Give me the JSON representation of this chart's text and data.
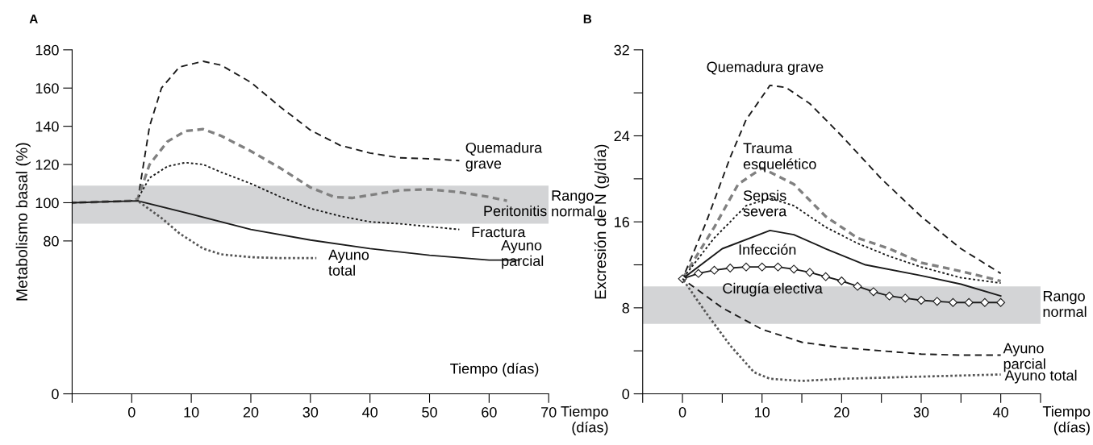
{
  "chart_data": [
    {
      "type": "line",
      "title": "A",
      "xlabel": "Tiempo\n(días)",
      "ylabel": "Metabolismo basal (%)",
      "xlim": [
        -10,
        70
      ],
      "xticks": [
        {
          "value": -10,
          "label": null
        },
        0,
        10,
        20,
        30,
        40,
        50,
        60,
        70
      ],
      "ylim": [
        0,
        180
      ],
      "yticks": [
        0,
        80,
        100,
        120,
        140,
        160,
        180
      ],
      "bands": [
        {
          "axis": "y",
          "from": 89,
          "to": 109,
          "label": "Rango\nnormal",
          "color": "#d3d4d6"
        }
      ],
      "series": [
        {
          "name": "Quemadura\ngrave",
          "color": "#1a1a1a",
          "line_style": "dashed",
          "x": [
            -10,
            0,
            1,
            3,
            5,
            8,
            12,
            15,
            20,
            25,
            30,
            35,
            40,
            45,
            50,
            55
          ],
          "values": [
            100,
            101,
            101,
            140,
            160,
            171,
            174,
            172,
            163,
            150,
            138,
            130,
            126,
            123.5,
            123,
            122
          ]
        },
        {
          "name": "Peritonitis",
          "color": "#808080",
          "line_style": "dashed",
          "x": [
            -10,
            0,
            1,
            3,
            6,
            9,
            12,
            15,
            20,
            25,
            30,
            34,
            37,
            40,
            45,
            50,
            55,
            60,
            63
          ],
          "values": [
            100,
            101,
            102,
            120,
            132,
            137.5,
            138.5,
            135,
            127,
            118,
            108,
            103,
            102.5,
            104,
            106.5,
            107,
            105.5,
            103,
            101
          ]
        },
        {
          "name": "Fractura",
          "color": "#1a1a1a",
          "line_style": "dotted",
          "x": [
            1,
            3,
            6,
            9,
            12,
            15,
            20,
            25,
            30,
            35,
            40,
            45,
            50,
            55
          ],
          "values": [
            102,
            113,
            119,
            121,
            120,
            116,
            110,
            103,
            97,
            93,
            90,
            89,
            87.5,
            86
          ]
        },
        {
          "name": "Ayuno\nparcial",
          "color": "#1a1a1a",
          "line_style": "solid",
          "x": [
            -10,
            1,
            10,
            20,
            30,
            40,
            50,
            60,
            65
          ],
          "values": [
            100,
            101,
            94,
            86,
            80.5,
            76,
            72.5,
            70,
            70
          ]
        },
        {
          "name": "Ayuno\ntotal",
          "color": "#555555",
          "line_style": "dotted",
          "x": [
            1,
            5,
            8,
            12,
            15,
            20,
            25,
            31
          ],
          "values": [
            101,
            92,
            84,
            76,
            73,
            71.5,
            71,
            71
          ]
        }
      ],
      "annotations": [
        "Tiempo (días)"
      ]
    },
    {
      "type": "line",
      "title": "B",
      "xlabel": "Tiempo\n(días)",
      "ylabel": "Excresión de N (g/día)",
      "xlim": [
        -5,
        45
      ],
      "xticks": [
        {
          "value": -5,
          "label": null
        },
        0,
        {
          "value": 5,
          "label": null
        },
        10,
        {
          "value": 15,
          "label": null
        },
        20,
        {
          "value": 25,
          "label": null
        },
        30,
        {
          "value": 35,
          "label": null
        },
        40,
        {
          "value": 45,
          "label": null
        }
      ],
      "ylim": [
        0,
        32
      ],
      "yticks": [
        0,
        {
          "value": 4,
          "label": null
        },
        8,
        {
          "value": 12,
          "label": null
        },
        16,
        {
          "value": 20,
          "label": null
        },
        24,
        {
          "value": 28,
          "label": null
        },
        32
      ],
      "bands": [
        {
          "axis": "y",
          "from": 6.5,
          "to": 10,
          "label": "Rango\nnormal",
          "color": "#d3d4d6"
        }
      ],
      "series": [
        {
          "name": "Quemadura grave",
          "color": "#1a1a1a",
          "line_style": "dashed",
          "x": [
            0,
            3,
            6,
            8,
            11,
            13,
            16,
            20,
            25,
            30,
            35,
            40
          ],
          "values": [
            10.7,
            16,
            22,
            25.5,
            28.7,
            28.5,
            27,
            24,
            20,
            16.5,
            13.5,
            11.2
          ]
        },
        {
          "name": "Trauma\nesquelético",
          "color": "#808080",
          "line_style": "dashed",
          "x": [
            0,
            4,
            7,
            10,
            14,
            18,
            22,
            26,
            30,
            35,
            40
          ],
          "values": [
            10.7,
            15.5,
            19.5,
            21,
            19.5,
            16.5,
            14.5,
            13.5,
            12.2,
            11.4,
            10.5
          ]
        },
        {
          "name": "Sepsis\nsevera",
          "color": "#1a1a1a",
          "line_style": "dotted",
          "x": [
            0,
            4,
            8,
            11,
            14,
            18,
            22,
            26,
            30,
            35,
            40
          ],
          "values": [
            10.7,
            14.5,
            17.5,
            18.2,
            17.5,
            15.5,
            14,
            12.8,
            11.8,
            10.8,
            10.3
          ]
        },
        {
          "name": "Infección",
          "color": "#1a1a1a",
          "line_style": "solid",
          "x": [
            0,
            5,
            11,
            14,
            18,
            23,
            30,
            35,
            40
          ],
          "values": [
            10.7,
            13.5,
            15.2,
            14.8,
            13.5,
            12,
            11,
            10.2,
            9.1
          ]
        },
        {
          "name": "Cirugía electiva",
          "color": "#1a1a1a",
          "line_style": "solid",
          "marker": "diamond",
          "x": [
            0,
            2,
            4,
            6,
            8,
            10,
            12,
            14,
            16,
            18,
            20,
            22,
            24,
            26,
            28,
            30,
            32,
            34,
            36,
            38,
            40
          ],
          "values": [
            10.7,
            11.2,
            11.5,
            11.7,
            11.8,
            11.8,
            11.8,
            11.6,
            11.3,
            10.9,
            10.5,
            10,
            9.5,
            9.1,
            8.9,
            8.7,
            8.6,
            8.5,
            8.5,
            8.5,
            8.5
          ]
        },
        {
          "name": "Ayuno\nparcial",
          "color": "#1a1a1a",
          "line_style": "dashed",
          "x": [
            0,
            5,
            10,
            15,
            20,
            25,
            30,
            35,
            40
          ],
          "values": [
            10.7,
            8,
            6,
            4.8,
            4.3,
            4,
            3.7,
            3.6,
            3.6
          ]
        },
        {
          "name": "Ayuno total",
          "color": "#555555",
          "line_style": "dotted",
          "x": [
            0,
            3,
            6,
            9,
            11,
            15,
            20,
            30,
            40
          ],
          "values": [
            10.7,
            7.5,
            4.5,
            2,
            1.4,
            1.2,
            1.4,
            1.6,
            1.8
          ]
        }
      ]
    }
  ]
}
